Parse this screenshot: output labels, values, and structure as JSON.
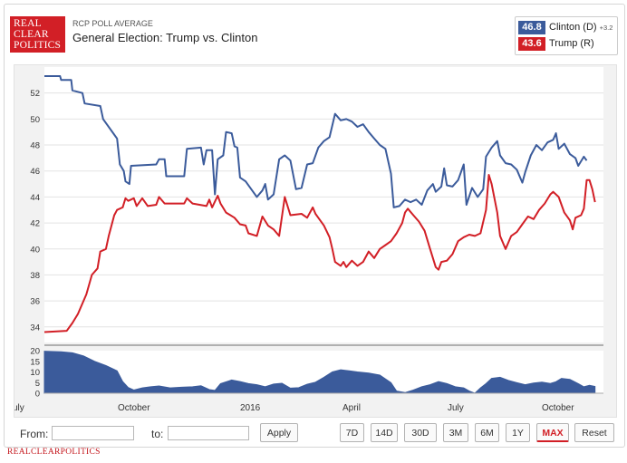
{
  "header": {
    "logo_lines": [
      "REAL",
      "CLEAR",
      "POLITICS"
    ],
    "subtitle": "RCP POLL AVERAGE",
    "title": "General Election: Trump vs. Clinton"
  },
  "legend": {
    "clinton": {
      "value": "46.8",
      "name": "Clinton (D)",
      "spread": "+3.2",
      "color": "#3b5b9b"
    },
    "trump": {
      "value": "43.6",
      "name": "Trump (R)",
      "color": "#d21f26"
    }
  },
  "controls": {
    "from_label": "From:",
    "to_label": "to:",
    "apply_label": "Apply",
    "ranges": [
      "7D",
      "14D",
      "30D",
      "3M",
      "6M",
      "1Y",
      "MAX"
    ],
    "active_range": "MAX",
    "reset_label": "Reset"
  },
  "footer": {
    "brand": "REALCLEARPOLITICS"
  },
  "chart_data": {
    "type": "line",
    "x_ticks": [
      "uly",
      "October",
      "2016",
      "April",
      "July",
      "October"
    ],
    "y_ticks": [
      34,
      36,
      38,
      40,
      42,
      44,
      46,
      48,
      50,
      52
    ],
    "ylim": [
      32.8,
      54
    ],
    "series": [
      {
        "name": "Clinton (D)",
        "color": "#3b5b9b",
        "points": [
          [
            0,
            53.3
          ],
          [
            0.028,
            53.3
          ],
          [
            0.03,
            53.0
          ],
          [
            0.048,
            53.0
          ],
          [
            0.05,
            52.2
          ],
          [
            0.068,
            52.0
          ],
          [
            0.072,
            51.2
          ],
          [
            0.1,
            51.0
          ],
          [
            0.105,
            50.0
          ],
          [
            0.13,
            48.5
          ],
          [
            0.135,
            46.5
          ],
          [
            0.142,
            46.0
          ],
          [
            0.145,
            45.2
          ],
          [
            0.152,
            45.0
          ],
          [
            0.155,
            46.4
          ],
          [
            0.2,
            46.5
          ],
          [
            0.205,
            46.9
          ],
          [
            0.215,
            46.9
          ],
          [
            0.218,
            45.6
          ],
          [
            0.25,
            45.6
          ],
          [
            0.255,
            47.7
          ],
          [
            0.28,
            47.8
          ],
          [
            0.285,
            46.5
          ],
          [
            0.29,
            47.6
          ],
          [
            0.3,
            47.6
          ],
          [
            0.305,
            44.2
          ],
          [
            0.31,
            46.9
          ],
          [
            0.32,
            47.2
          ],
          [
            0.325,
            49.0
          ],
          [
            0.335,
            48.9
          ],
          [
            0.34,
            47.9
          ],
          [
            0.345,
            47.8
          ],
          [
            0.35,
            45.5
          ],
          [
            0.36,
            45.2
          ],
          [
            0.37,
            44.6
          ],
          [
            0.38,
            44.0
          ],
          [
            0.39,
            44.5
          ],
          [
            0.395,
            45.0
          ],
          [
            0.4,
            43.8
          ],
          [
            0.41,
            44.2
          ],
          [
            0.42,
            46.9
          ],
          [
            0.43,
            47.2
          ],
          [
            0.44,
            46.8
          ],
          [
            0.45,
            44.6
          ],
          [
            0.46,
            44.7
          ],
          [
            0.47,
            46.5
          ],
          [
            0.48,
            46.6
          ],
          [
            0.49,
            47.8
          ],
          [
            0.5,
            48.3
          ],
          [
            0.51,
            48.6
          ],
          [
            0.52,
            50.4
          ],
          [
            0.53,
            49.9
          ],
          [
            0.54,
            50.0
          ],
          [
            0.55,
            49.8
          ],
          [
            0.56,
            49.4
          ],
          [
            0.57,
            49.6
          ],
          [
            0.58,
            49.0
          ],
          [
            0.59,
            48.5
          ],
          [
            0.6,
            48.0
          ],
          [
            0.61,
            47.7
          ],
          [
            0.62,
            45.8
          ],
          [
            0.625,
            43.2
          ],
          [
            0.635,
            43.3
          ],
          [
            0.645,
            43.8
          ],
          [
            0.655,
            43.6
          ],
          [
            0.665,
            43.8
          ],
          [
            0.675,
            43.4
          ],
          [
            0.685,
            44.5
          ],
          [
            0.695,
            45.0
          ],
          [
            0.7,
            44.4
          ],
          [
            0.71,
            44.8
          ],
          [
            0.715,
            46.2
          ],
          [
            0.72,
            44.9
          ],
          [
            0.73,
            44.8
          ],
          [
            0.74,
            45.3
          ],
          [
            0.75,
            46.5
          ],
          [
            0.755,
            43.4
          ],
          [
            0.765,
            44.7
          ],
          [
            0.775,
            44.0
          ],
          [
            0.785,
            44.6
          ],
          [
            0.79,
            47.1
          ],
          [
            0.8,
            47.8
          ],
          [
            0.81,
            48.3
          ],
          [
            0.815,
            47.2
          ],
          [
            0.825,
            46.6
          ],
          [
            0.835,
            46.5
          ],
          [
            0.845,
            46.1
          ],
          [
            0.855,
            45.1
          ],
          [
            0.86,
            45.9
          ],
          [
            0.87,
            47.2
          ],
          [
            0.88,
            48.0
          ],
          [
            0.89,
            47.6
          ],
          [
            0.9,
            48.2
          ],
          [
            0.91,
            48.4
          ],
          [
            0.915,
            48.9
          ],
          [
            0.92,
            47.7
          ],
          [
            0.93,
            48.1
          ],
          [
            0.94,
            47.3
          ],
          [
            0.95,
            47.0
          ],
          [
            0.955,
            46.4
          ],
          [
            0.965,
            47.1
          ],
          [
            0.97,
            46.8
          ]
        ]
      },
      {
        "name": "Trump (R)",
        "color": "#d21f26",
        "points": [
          [
            0,
            33.6
          ],
          [
            0.04,
            33.7
          ],
          [
            0.05,
            34.3
          ],
          [
            0.06,
            35.0
          ],
          [
            0.075,
            36.5
          ],
          [
            0.085,
            38.0
          ],
          [
            0.095,
            38.5
          ],
          [
            0.1,
            39.8
          ],
          [
            0.11,
            40.0
          ],
          [
            0.115,
            41.0
          ],
          [
            0.125,
            42.6
          ],
          [
            0.13,
            43.0
          ],
          [
            0.14,
            43.2
          ],
          [
            0.145,
            43.9
          ],
          [
            0.15,
            43.7
          ],
          [
            0.16,
            43.9
          ],
          [
            0.165,
            43.3
          ],
          [
            0.175,
            43.9
          ],
          [
            0.185,
            43.3
          ],
          [
            0.2,
            43.4
          ],
          [
            0.205,
            44.0
          ],
          [
            0.215,
            43.5
          ],
          [
            0.25,
            43.5
          ],
          [
            0.255,
            43.9
          ],
          [
            0.265,
            43.5
          ],
          [
            0.29,
            43.3
          ],
          [
            0.295,
            43.8
          ],
          [
            0.3,
            43.2
          ],
          [
            0.31,
            44.1
          ],
          [
            0.315,
            43.5
          ],
          [
            0.325,
            42.8
          ],
          [
            0.34,
            42.4
          ],
          [
            0.35,
            41.9
          ],
          [
            0.36,
            41.8
          ],
          [
            0.365,
            41.2
          ],
          [
            0.38,
            41.0
          ],
          [
            0.39,
            42.5
          ],
          [
            0.4,
            41.8
          ],
          [
            0.41,
            41.5
          ],
          [
            0.42,
            41.0
          ],
          [
            0.43,
            44.0
          ],
          [
            0.44,
            42.6
          ],
          [
            0.46,
            42.7
          ],
          [
            0.47,
            42.4
          ],
          [
            0.48,
            43.2
          ],
          [
            0.485,
            42.7
          ],
          [
            0.49,
            42.4
          ],
          [
            0.5,
            41.8
          ],
          [
            0.51,
            40.9
          ],
          [
            0.515,
            40.0
          ],
          [
            0.52,
            39.0
          ],
          [
            0.53,
            38.7
          ],
          [
            0.535,
            39.0
          ],
          [
            0.54,
            38.6
          ],
          [
            0.55,
            39.1
          ],
          [
            0.56,
            38.7
          ],
          [
            0.57,
            39.0
          ],
          [
            0.58,
            39.8
          ],
          [
            0.59,
            39.3
          ],
          [
            0.6,
            40.0
          ],
          [
            0.61,
            40.3
          ],
          [
            0.62,
            40.6
          ],
          [
            0.63,
            41.2
          ],
          [
            0.64,
            42.0
          ],
          [
            0.645,
            42.8
          ],
          [
            0.65,
            43.1
          ],
          [
            0.66,
            42.6
          ],
          [
            0.67,
            42.1
          ],
          [
            0.68,
            41.4
          ],
          [
            0.69,
            40.0
          ],
          [
            0.7,
            38.6
          ],
          [
            0.705,
            38.4
          ],
          [
            0.71,
            39.0
          ],
          [
            0.72,
            39.1
          ],
          [
            0.73,
            39.6
          ],
          [
            0.74,
            40.6
          ],
          [
            0.75,
            40.9
          ],
          [
            0.76,
            41.1
          ],
          [
            0.77,
            41.0
          ],
          [
            0.78,
            41.2
          ],
          [
            0.79,
            43.0
          ],
          [
            0.795,
            45.7
          ],
          [
            0.8,
            45.0
          ],
          [
            0.81,
            42.8
          ],
          [
            0.815,
            41.0
          ],
          [
            0.825,
            40.0
          ],
          [
            0.835,
            41.0
          ],
          [
            0.845,
            41.3
          ],
          [
            0.855,
            41.9
          ],
          [
            0.865,
            42.5
          ],
          [
            0.875,
            42.3
          ],
          [
            0.885,
            43.0
          ],
          [
            0.895,
            43.5
          ],
          [
            0.905,
            44.2
          ],
          [
            0.91,
            44.4
          ],
          [
            0.92,
            44.0
          ],
          [
            0.93,
            42.8
          ],
          [
            0.94,
            42.2
          ],
          [
            0.945,
            41.5
          ],
          [
            0.95,
            42.4
          ],
          [
            0.96,
            42.6
          ],
          [
            0.965,
            43.1
          ],
          [
            0.97,
            45.3
          ],
          [
            0.975,
            45.3
          ],
          [
            0.98,
            44.6
          ],
          [
            0.985,
            43.6
          ]
        ]
      }
    ],
    "navigator": {
      "type": "area",
      "y_ticks": [
        0,
        5,
        10,
        15,
        20
      ],
      "ylim": [
        0,
        20
      ],
      "color": "#3b5b9b",
      "points": [
        [
          0,
          19.7
        ],
        [
          0.03,
          19.5
        ],
        [
          0.05,
          19.0
        ],
        [
          0.07,
          17.5
        ],
        [
          0.09,
          15.0
        ],
        [
          0.11,
          13.0
        ],
        [
          0.13,
          10.5
        ],
        [
          0.14,
          5.5
        ],
        [
          0.15,
          2.7
        ],
        [
          0.16,
          1.5
        ],
        [
          0.175,
          2.5
        ],
        [
          0.19,
          3.0
        ],
        [
          0.205,
          3.4
        ],
        [
          0.225,
          2.5
        ],
        [
          0.245,
          2.8
        ],
        [
          0.265,
          3.0
        ],
        [
          0.28,
          3.5
        ],
        [
          0.295,
          1.7
        ],
        [
          0.305,
          1.3
        ],
        [
          0.315,
          4.5
        ],
        [
          0.335,
          6.2
        ],
        [
          0.35,
          5.5
        ],
        [
          0.365,
          4.5
        ],
        [
          0.38,
          4.0
        ],
        [
          0.395,
          3.0
        ],
        [
          0.41,
          4.3
        ],
        [
          0.425,
          4.7
        ],
        [
          0.44,
          2.4
        ],
        [
          0.455,
          2.6
        ],
        [
          0.47,
          4.2
        ],
        [
          0.485,
          5.2
        ],
        [
          0.5,
          7.5
        ],
        [
          0.515,
          10.0
        ],
        [
          0.53,
          11.0
        ],
        [
          0.545,
          10.5
        ],
        [
          0.56,
          10.0
        ],
        [
          0.58,
          9.5
        ],
        [
          0.6,
          8.5
        ],
        [
          0.62,
          5.0
        ],
        [
          0.63,
          1.0
        ],
        [
          0.645,
          0.3
        ],
        [
          0.66,
          1.5
        ],
        [
          0.675,
          3.0
        ],
        [
          0.69,
          4.0
        ],
        [
          0.705,
          5.5
        ],
        [
          0.72,
          4.5
        ],
        [
          0.735,
          3.0
        ],
        [
          0.75,
          2.5
        ],
        [
          0.76,
          1.0
        ],
        [
          0.77,
          0.0
        ],
        [
          0.78,
          2.5
        ],
        [
          0.79,
          4.5
        ],
        [
          0.8,
          7.0
        ],
        [
          0.815,
          7.5
        ],
        [
          0.83,
          6.0
        ],
        [
          0.845,
          5.0
        ],
        [
          0.86,
          4.0
        ],
        [
          0.875,
          4.8
        ],
        [
          0.89,
          5.2
        ],
        [
          0.905,
          4.6
        ],
        [
          0.915,
          5.4
        ],
        [
          0.925,
          7.0
        ],
        [
          0.94,
          6.5
        ],
        [
          0.955,
          4.5
        ],
        [
          0.965,
          3.0
        ],
        [
          0.975,
          3.7
        ],
        [
          0.985,
          3.2
        ]
      ]
    }
  }
}
